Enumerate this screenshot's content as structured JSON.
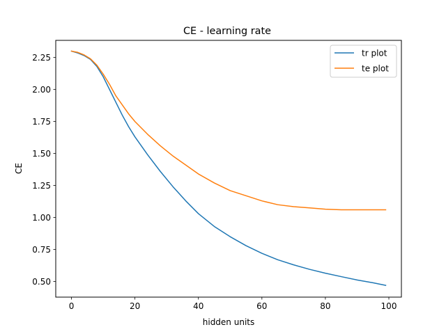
{
  "chart_data": {
    "type": "line",
    "title": "CE - learning rate",
    "xlabel": "hidden units",
    "ylabel": "CE",
    "xlim": [
      -4.95,
      103.95
    ],
    "ylim": [
      0.378,
      2.384
    ],
    "xticks": [
      0,
      20,
      40,
      60,
      80,
      100
    ],
    "xtick_labels": [
      "0",
      "20",
      "40",
      "60",
      "80",
      "100"
    ],
    "yticks": [
      0.5,
      0.75,
      1.0,
      1.25,
      1.5,
      1.75,
      2.0,
      2.25
    ],
    "ytick_labels": [
      "0.50",
      "0.75",
      "1.00",
      "1.25",
      "1.50",
      "1.75",
      "2.00",
      "2.25"
    ],
    "grid": false,
    "legend_position": "top-right",
    "series": [
      {
        "name": "tr plot",
        "color": "#1f77b4",
        "x": [
          0,
          2,
          4,
          6,
          8,
          10,
          12,
          14,
          16,
          18,
          20,
          24,
          28,
          32,
          36,
          40,
          45,
          50,
          55,
          60,
          65,
          70,
          75,
          80,
          85,
          90,
          95,
          99
        ],
        "y": [
          2.3,
          2.285,
          2.265,
          2.235,
          2.18,
          2.1,
          2.0,
          1.9,
          1.8,
          1.71,
          1.63,
          1.49,
          1.36,
          1.24,
          1.13,
          1.03,
          0.93,
          0.85,
          0.78,
          0.72,
          0.67,
          0.63,
          0.595,
          0.565,
          0.538,
          0.512,
          0.49,
          0.47
        ]
      },
      {
        "name": "te plot",
        "color": "#ff7f0e",
        "x": [
          0,
          2,
          4,
          6,
          8,
          10,
          12,
          14,
          16,
          18,
          20,
          24,
          28,
          32,
          36,
          40,
          45,
          50,
          55,
          60,
          65,
          70,
          75,
          80,
          85,
          90,
          95,
          99
        ],
        "y": [
          2.3,
          2.29,
          2.27,
          2.24,
          2.19,
          2.12,
          2.04,
          1.95,
          1.88,
          1.81,
          1.75,
          1.65,
          1.56,
          1.48,
          1.41,
          1.34,
          1.27,
          1.21,
          1.17,
          1.13,
          1.1,
          1.085,
          1.075,
          1.065,
          1.06,
          1.06,
          1.06,
          1.06
        ]
      }
    ]
  }
}
